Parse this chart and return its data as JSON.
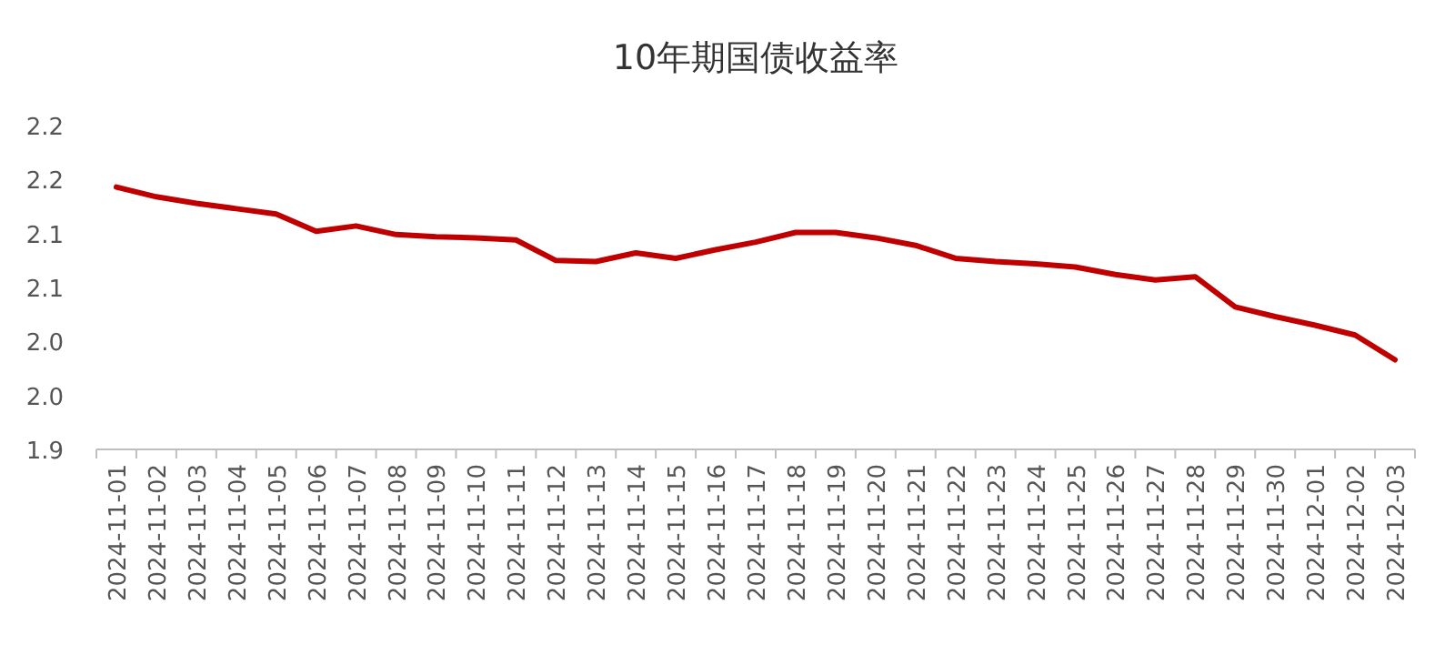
{
  "chart_data": {
    "type": "line",
    "title": "10年期国债收益率",
    "categories": [
      "2024-11-01",
      "2024-11-02",
      "2024-11-03",
      "2024-11-04",
      "2024-11-05",
      "2024-11-06",
      "2024-11-07",
      "2024-11-08",
      "2024-11-09",
      "2024-11-10",
      "2024-11-11",
      "2024-11-12",
      "2024-11-13",
      "2024-11-14",
      "2024-11-15",
      "2024-11-16",
      "2024-11-17",
      "2024-11-18",
      "2024-11-19",
      "2024-11-20",
      "2024-11-21",
      "2024-11-22",
      "2024-11-23",
      "2024-11-24",
      "2024-11-25",
      "2024-11-26",
      "2024-11-27",
      "2024-11-28",
      "2024-11-29",
      "2024-11-30",
      "2024-12-01",
      "2024-12-02",
      "2024-12-03"
    ],
    "series": [
      {
        "color": "#c00000",
        "values": [
          2.143,
          2.134,
          2.128,
          2.123,
          2.118,
          2.102,
          2.107,
          2.099,
          2.097,
          2.096,
          2.094,
          2.075,
          2.074,
          2.082,
          2.077,
          2.085,
          2.092,
          2.101,
          2.101,
          2.096,
          2.089,
          2.077,
          2.074,
          2.072,
          2.069,
          2.062,
          2.057,
          2.06,
          2.032,
          2.023,
          2.015,
          2.006,
          1.983
        ]
      }
    ],
    "ylim": [
      1.9,
      2.2
    ],
    "yticks": [
      {
        "value": 1.9,
        "label": "1.9"
      },
      {
        "value": 1.95,
        "label": "2.0"
      },
      {
        "value": 2.0,
        "label": "2.0"
      },
      {
        "value": 2.05,
        "label": "2.1"
      },
      {
        "value": 2.1,
        "label": "2.1"
      },
      {
        "value": 2.15,
        "label": "2.2"
      },
      {
        "value": 2.2,
        "label": "2.2"
      }
    ]
  }
}
